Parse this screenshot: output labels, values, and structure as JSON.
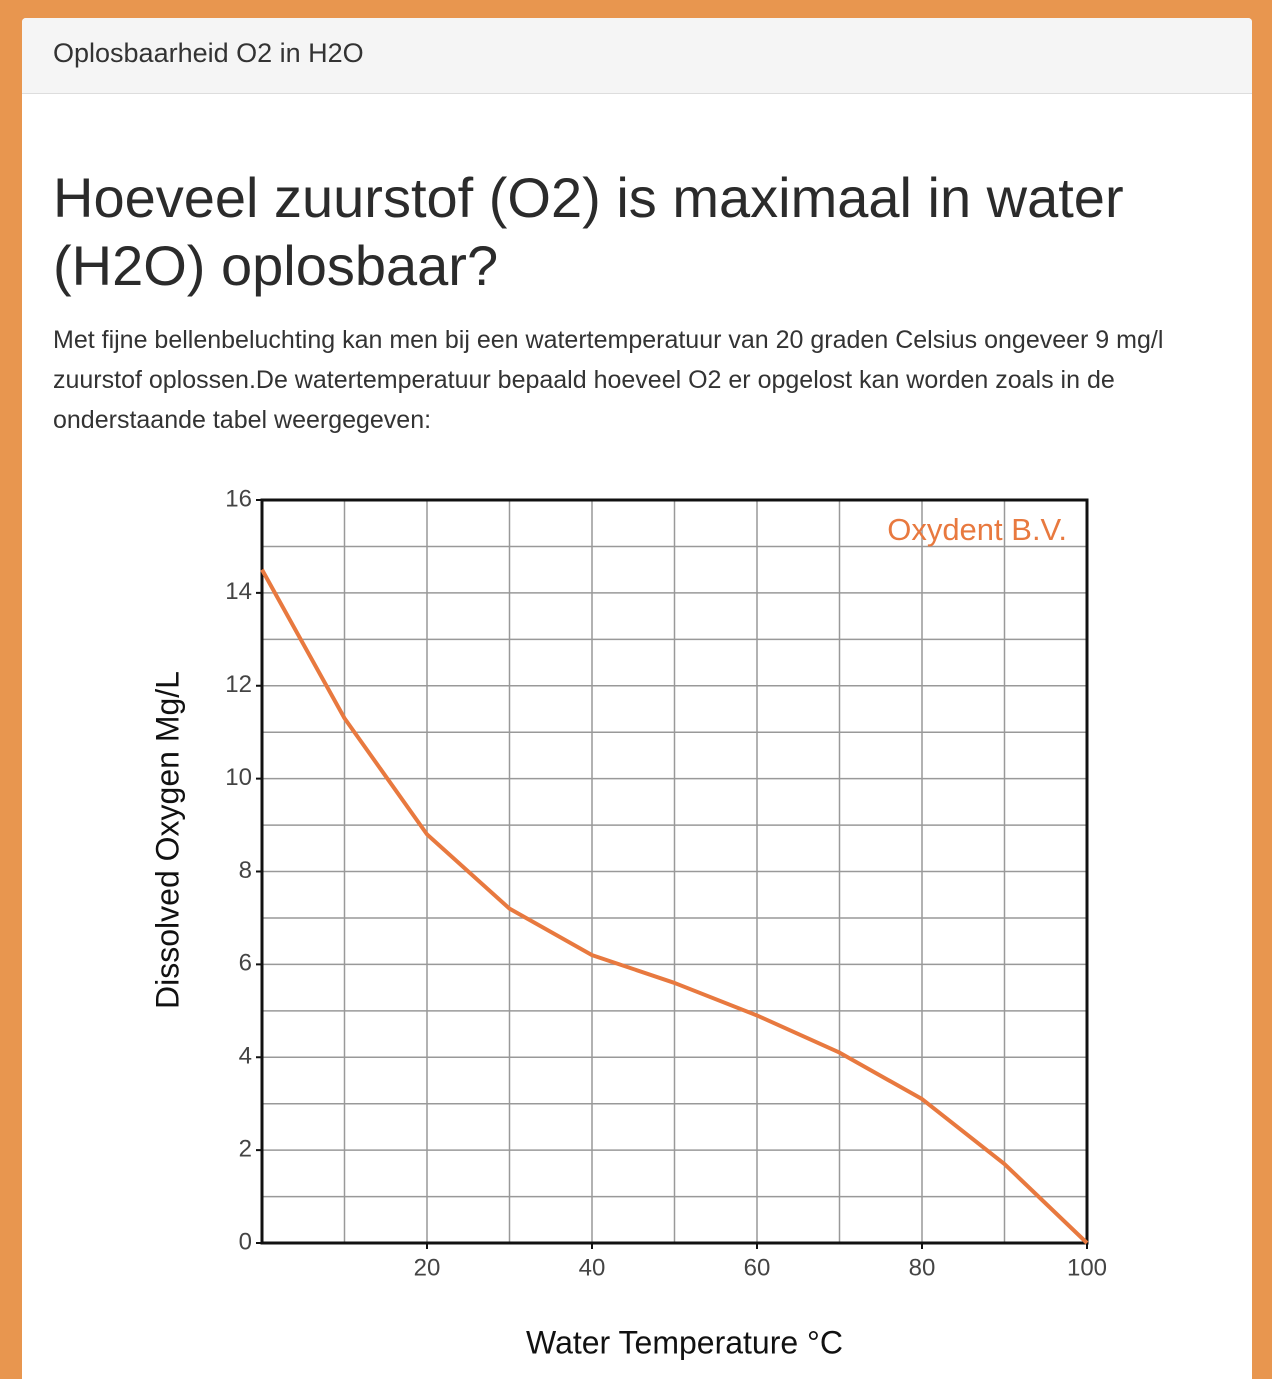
{
  "header": {
    "title": "Oplosbaarheid O2 in H2O"
  },
  "article": {
    "heading": "Hoeveel zuurstof (O2) is maximaal in water (H2O) oplosbaar?",
    "paragraph": "Met fijne bellenbeluchting kan men bij een watertemperatuur van 20 graden Celsius ongeveer 9 mg/l zuurstof oplossen.De watertemperatuur bepaald hoeveel O2 er opgelost kan worden zoals in de onderstaande tabel weergegeven:"
  },
  "chart_data": {
    "type": "line",
    "xlabel": "Water Temperature °C",
    "ylabel": "Dissolved Oxygen Mg/L",
    "annotation": "Oxydent B.V.",
    "x": [
      0,
      10,
      20,
      30,
      40,
      50,
      60,
      70,
      80,
      90,
      100
    ],
    "values": [
      14.5,
      11.3,
      8.8,
      7.2,
      6.2,
      5.6,
      4.9,
      4.1,
      3.1,
      1.7,
      0
    ],
    "color": "#e8793f",
    "xlim": [
      0,
      100
    ],
    "ylim": [
      0,
      16
    ],
    "xticks": [
      20,
      40,
      60,
      80,
      100
    ],
    "yticks": [
      0,
      2,
      4,
      6,
      8,
      10,
      12,
      14,
      16
    ],
    "x_gridlines": [
      10,
      20,
      30,
      40,
      50,
      60,
      70,
      80,
      90
    ],
    "y_gridlines": [
      1,
      2,
      3,
      4,
      5,
      6,
      7,
      8,
      9,
      10,
      11,
      12,
      13,
      14,
      15
    ],
    "grid": true
  }
}
